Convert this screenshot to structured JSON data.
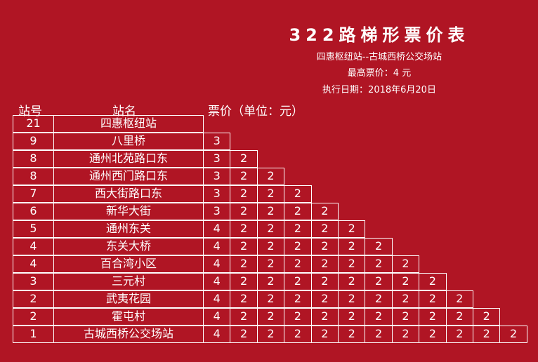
{
  "title": "322路梯形票价表",
  "route": "四惠枢纽站--古城西桥公交场站",
  "max_fare": "最高票价：4 元",
  "effective_date": "执行日期：2018年6月20日",
  "headers": {
    "stop_no": "站号",
    "stop_name": "站名",
    "fare": "票价（单位：元）"
  },
  "rows": [
    {
      "no": "21",
      "name": "四惠枢纽站",
      "fares": []
    },
    {
      "no": "9",
      "name": "八里桥",
      "fares": [
        "3"
      ]
    },
    {
      "no": "8",
      "name": "通州北苑路口东",
      "fares": [
        "3",
        "2"
      ]
    },
    {
      "no": "8",
      "name": "通州西门路口东",
      "fares": [
        "3",
        "2",
        "2"
      ]
    },
    {
      "no": "7",
      "name": "西大街路口东",
      "fares": [
        "3",
        "2",
        "2",
        "2"
      ]
    },
    {
      "no": "6",
      "name": "新华大街",
      "fares": [
        "3",
        "2",
        "2",
        "2",
        "2"
      ]
    },
    {
      "no": "5",
      "name": "通州东关",
      "fares": [
        "4",
        "2",
        "2",
        "2",
        "2",
        "2"
      ]
    },
    {
      "no": "4",
      "name": "东关大桥",
      "fares": [
        "4",
        "2",
        "2",
        "2",
        "2",
        "2",
        "2"
      ]
    },
    {
      "no": "4",
      "name": "百合湾小区",
      "fares": [
        "4",
        "2",
        "2",
        "2",
        "2",
        "2",
        "2",
        "2"
      ]
    },
    {
      "no": "3",
      "name": "三元村",
      "fares": [
        "4",
        "2",
        "2",
        "2",
        "2",
        "2",
        "2",
        "2",
        "2"
      ]
    },
    {
      "no": "2",
      "name": "武夷花园",
      "fares": [
        "4",
        "2",
        "2",
        "2",
        "2",
        "2",
        "2",
        "2",
        "2",
        "2"
      ]
    },
    {
      "no": "2",
      "name": "霍屯村",
      "fares": [
        "4",
        "2",
        "2",
        "2",
        "2",
        "2",
        "2",
        "2",
        "2",
        "2",
        "2"
      ]
    },
    {
      "no": "1",
      "name": "古城西桥公交场站",
      "fares": [
        "4",
        "2",
        "2",
        "2",
        "2",
        "2",
        "2",
        "2",
        "2",
        "2",
        "2",
        "2"
      ]
    }
  ],
  "colors": {
    "background": "#b01524",
    "text": "#ffffff",
    "lines": "#ffffff"
  }
}
